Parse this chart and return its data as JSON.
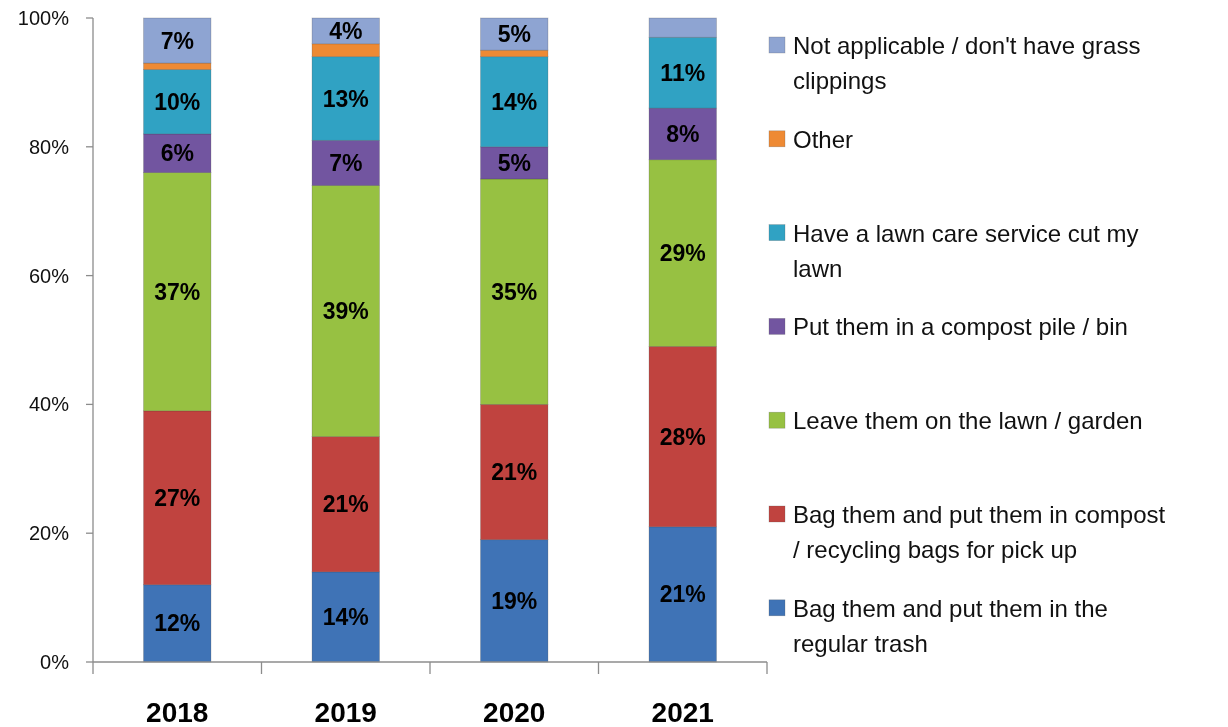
{
  "chart_data": {
    "type": "bar",
    "stacked": true,
    "categories": [
      "2018",
      "2019",
      "2020",
      "2021"
    ],
    "series": [
      {
        "name": "Bag them and put them in the regular trash",
        "color": "#3f73b6",
        "values": [
          12,
          14,
          19,
          21
        ],
        "value_labels": [
          "12%",
          "14%",
          "19%",
          "21%"
        ]
      },
      {
        "name": "Bag them and put them in compost / recycling bags for pick up",
        "color": "#c0433f",
        "values": [
          27,
          21,
          21,
          28
        ],
        "value_labels": [
          "27%",
          "21%",
          "21%",
          "28%"
        ]
      },
      {
        "name": "Leave them on the lawn / garden",
        "color": "#97c142",
        "values": [
          37,
          39,
          35,
          29
        ],
        "value_labels": [
          "37%",
          "39%",
          "35%",
          "29%"
        ]
      },
      {
        "name": "Put them in a compost pile / bin",
        "color": "#7255a0",
        "values": [
          6,
          7,
          5,
          8
        ],
        "value_labels": [
          "6%",
          "7%",
          "5%",
          "8%"
        ]
      },
      {
        "name": "Have a lawn care service cut my lawn",
        "color": "#30a2c3",
        "values": [
          10,
          13,
          14,
          11
        ],
        "value_labels": [
          "10%",
          "13%",
          "14%",
          "11%"
        ]
      },
      {
        "name": "Other",
        "color": "#ee8a34",
        "values": [
          1,
          2,
          1,
          null
        ]
      },
      {
        "name": "Not applicable / don't have grass clippings",
        "color": "#8ea4d2",
        "values": [
          7,
          4,
          5,
          3
        ],
        "value_labels": [
          "7%",
          "4%",
          "5%",
          null
        ]
      }
    ],
    "ylim": [
      0,
      100
    ],
    "yticks": [
      {
        "value": 0,
        "label": "0%"
      },
      {
        "value": 20,
        "label": "20%"
      },
      {
        "value": 40,
        "label": "40%"
      },
      {
        "value": 60,
        "label": "60%"
      },
      {
        "value": 80,
        "label": "80%"
      },
      {
        "value": 100,
        "label": "100%"
      }
    ],
    "legend": "right"
  }
}
